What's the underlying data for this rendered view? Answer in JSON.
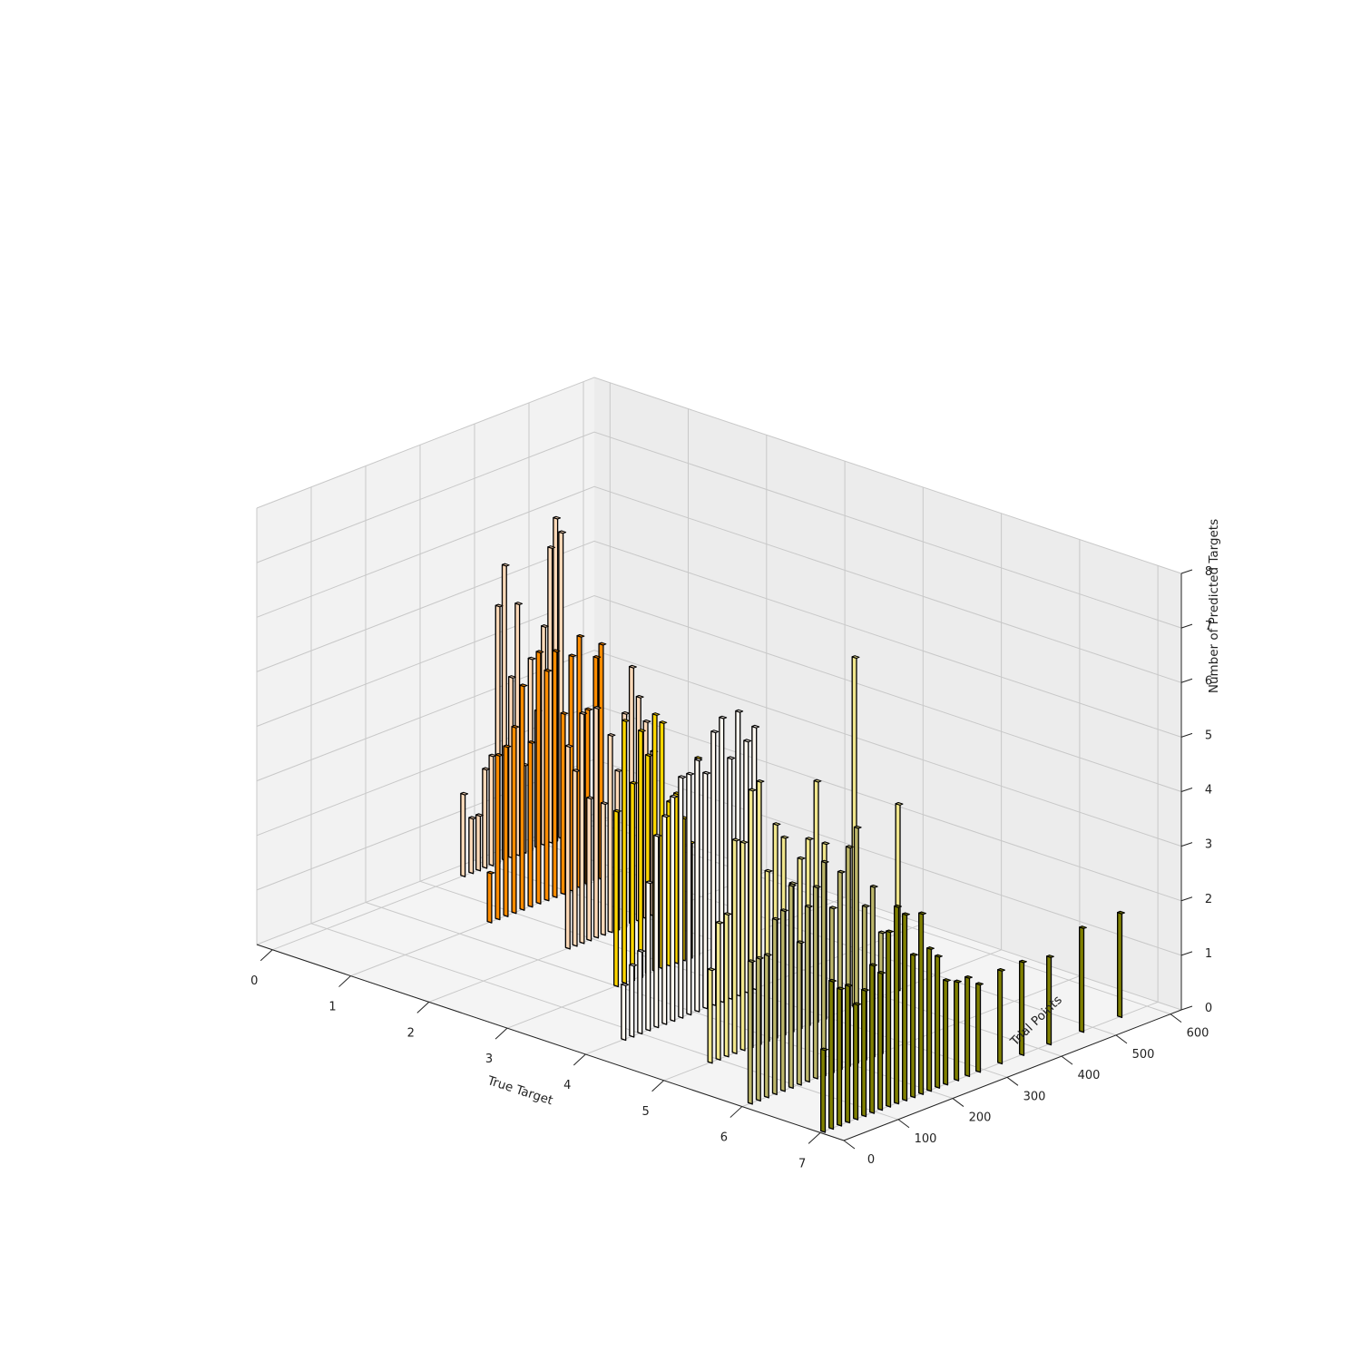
{
  "chart_data": {
    "type": "bar3d",
    "title": "",
    "xlabel": "True Target",
    "ylabel": "Trial Points",
    "zlabel": "Number of Predicted Targets",
    "xticks": [
      0,
      1,
      2,
      3,
      4,
      5,
      6,
      7
    ],
    "yticks": [
      0,
      100,
      200,
      300,
      400,
      500,
      600
    ],
    "zticks": [
      0,
      1,
      2,
      3,
      4,
      5,
      6,
      7,
      8
    ],
    "xlim": [
      -0.2,
      7.3
    ],
    "ylim": [
      0,
      620
    ],
    "zlim": [
      0,
      8
    ],
    "grid": true,
    "pane_colors": {
      "floor": "#f4f4f4",
      "left_wall": "#f2f2f2",
      "back_wall": "#ececec"
    },
    "edge_color": "#000000",
    "series": [
      {
        "x": 0,
        "color": "#ffdab9",
        "bars": [
          [
            350,
            1.5
          ],
          [
            365,
            1.0
          ],
          [
            378,
            1.0
          ],
          [
            390,
            1.8
          ],
          [
            402,
            2.0
          ],
          [
            414,
            4.7
          ],
          [
            426,
            5.4
          ],
          [
            438,
            3.3
          ],
          [
            450,
            4.6
          ],
          [
            462,
            1.6
          ],
          [
            474,
            3.5
          ],
          [
            486,
            2.5
          ],
          [
            498,
            4.0
          ],
          [
            510,
            5.4
          ],
          [
            520,
            5.9
          ],
          [
            530,
            5.6
          ]
        ]
      },
      {
        "x": 1,
        "color": "#ff8c00",
        "bars": [
          [
            255,
            0.9
          ],
          [
            270,
            3.0
          ],
          [
            285,
            3.1
          ],
          [
            300,
            3.4
          ],
          [
            315,
            4.1
          ],
          [
            330,
            3.0
          ],
          [
            345,
            4.6
          ],
          [
            360,
            4.2
          ],
          [
            375,
            4.5
          ],
          [
            390,
            3.3
          ],
          [
            405,
            4.3
          ],
          [
            420,
            4.6
          ],
          [
            435,
            3.2
          ],
          [
            450,
            4.1
          ],
          [
            460,
            4.3
          ]
        ]
      },
      {
        "x": 2,
        "color": "#ffdab9",
        "bars": [
          [
            255,
            3.7
          ],
          [
            268,
            3.2
          ],
          [
            281,
            4.2
          ],
          [
            294,
            2.6
          ],
          [
            307,
            4.2
          ],
          [
            320,
            2.4
          ],
          [
            333,
            3.6
          ],
          [
            346,
            2.9
          ],
          [
            359,
            3.9
          ],
          [
            372,
            4.7
          ],
          [
            385,
            4.1
          ],
          [
            398,
            3.6
          ],
          [
            411,
            3.0
          ]
        ]
      },
      {
        "x": 3,
        "color": "#ffd700",
        "bars": [
          [
            200,
            3.2
          ],
          [
            215,
            4.8
          ],
          [
            230,
            3.6
          ],
          [
            245,
            4.5
          ],
          [
            258,
            4.0
          ],
          [
            271,
            4.7
          ],
          [
            284,
            4.5
          ],
          [
            297,
            3.0
          ],
          [
            310,
            3.1
          ],
          [
            323,
            2.6
          ],
          [
            336,
            2.1
          ],
          [
            349,
            3.6
          ]
        ]
      },
      {
        "x": 4,
        "color": "#fff8f0",
        "bars": [
          [
            70,
            1.0
          ],
          [
            85,
            1.3
          ],
          [
            100,
            1.5
          ],
          [
            115,
            2.7
          ],
          [
            130,
            3.5
          ],
          [
            145,
            3.8
          ],
          [
            160,
            4.1
          ],
          [
            175,
            4.4
          ],
          [
            190,
            4.4
          ],
          [
            205,
            4.6
          ],
          [
            220,
            4.3
          ],
          [
            235,
            5.0
          ],
          [
            250,
            5.2
          ],
          [
            265,
            4.4
          ],
          [
            280,
            5.2
          ],
          [
            295,
            4.6
          ],
          [
            310,
            4.8
          ]
        ]
      },
      {
        "x": 5,
        "color": "#f0e68c",
        "bars": [
          [
            85,
            1.7
          ],
          [
            100,
            2.5
          ],
          [
            115,
            2.6
          ],
          [
            130,
            3.9
          ],
          [
            145,
            3.8
          ],
          [
            160,
            4.7
          ],
          [
            175,
            4.8
          ],
          [
            190,
            3.1
          ],
          [
            205,
            3.9
          ],
          [
            220,
            3.6
          ],
          [
            235,
            2.7
          ],
          [
            250,
            3.1
          ],
          [
            265,
            3.4
          ],
          [
            280,
            4.4
          ],
          [
            295,
            3.2
          ],
          [
            350,
            6.4
          ],
          [
            430,
            3.4
          ]
        ]
      },
      {
        "x": 6,
        "color": "#bdb76b",
        "bars": [
          [
            15,
            2.6
          ],
          [
            30,
            2.6
          ],
          [
            45,
            2.6
          ],
          [
            60,
            3.2
          ],
          [
            75,
            3.3
          ],
          [
            90,
            3.7
          ],
          [
            105,
            2.6
          ],
          [
            120,
            3.2
          ],
          [
            135,
            3.5
          ],
          [
            150,
            3.9
          ],
          [
            165,
            3.0
          ],
          [
            180,
            3.6
          ],
          [
            195,
            4.0
          ],
          [
            210,
            4.3
          ],
          [
            225,
            2.8
          ],
          [
            240,
            3.1
          ],
          [
            255,
            2.2
          ]
        ]
      },
      {
        "x": 7,
        "color": "#808000",
        "bars": [
          [
            5,
            1.5
          ],
          [
            20,
            2.7
          ],
          [
            35,
            2.5
          ],
          [
            50,
            2.5
          ],
          [
            65,
            2.1
          ],
          [
            80,
            2.3
          ],
          [
            95,
            2.7
          ],
          [
            110,
            2.5
          ],
          [
            125,
            3.2
          ],
          [
            140,
            3.6
          ],
          [
            155,
            3.4
          ],
          [
            170,
            2.6
          ],
          [
            185,
            3.3
          ],
          [
            200,
            2.6
          ],
          [
            215,
            2.4
          ],
          [
            230,
            1.9
          ],
          [
            250,
            1.8
          ],
          [
            270,
            1.8
          ],
          [
            290,
            1.6
          ],
          [
            330,
            1.7
          ],
          [
            370,
            1.7
          ],
          [
            420,
            1.6
          ],
          [
            480,
            1.9
          ],
          [
            550,
            1.9
          ]
        ]
      }
    ]
  }
}
